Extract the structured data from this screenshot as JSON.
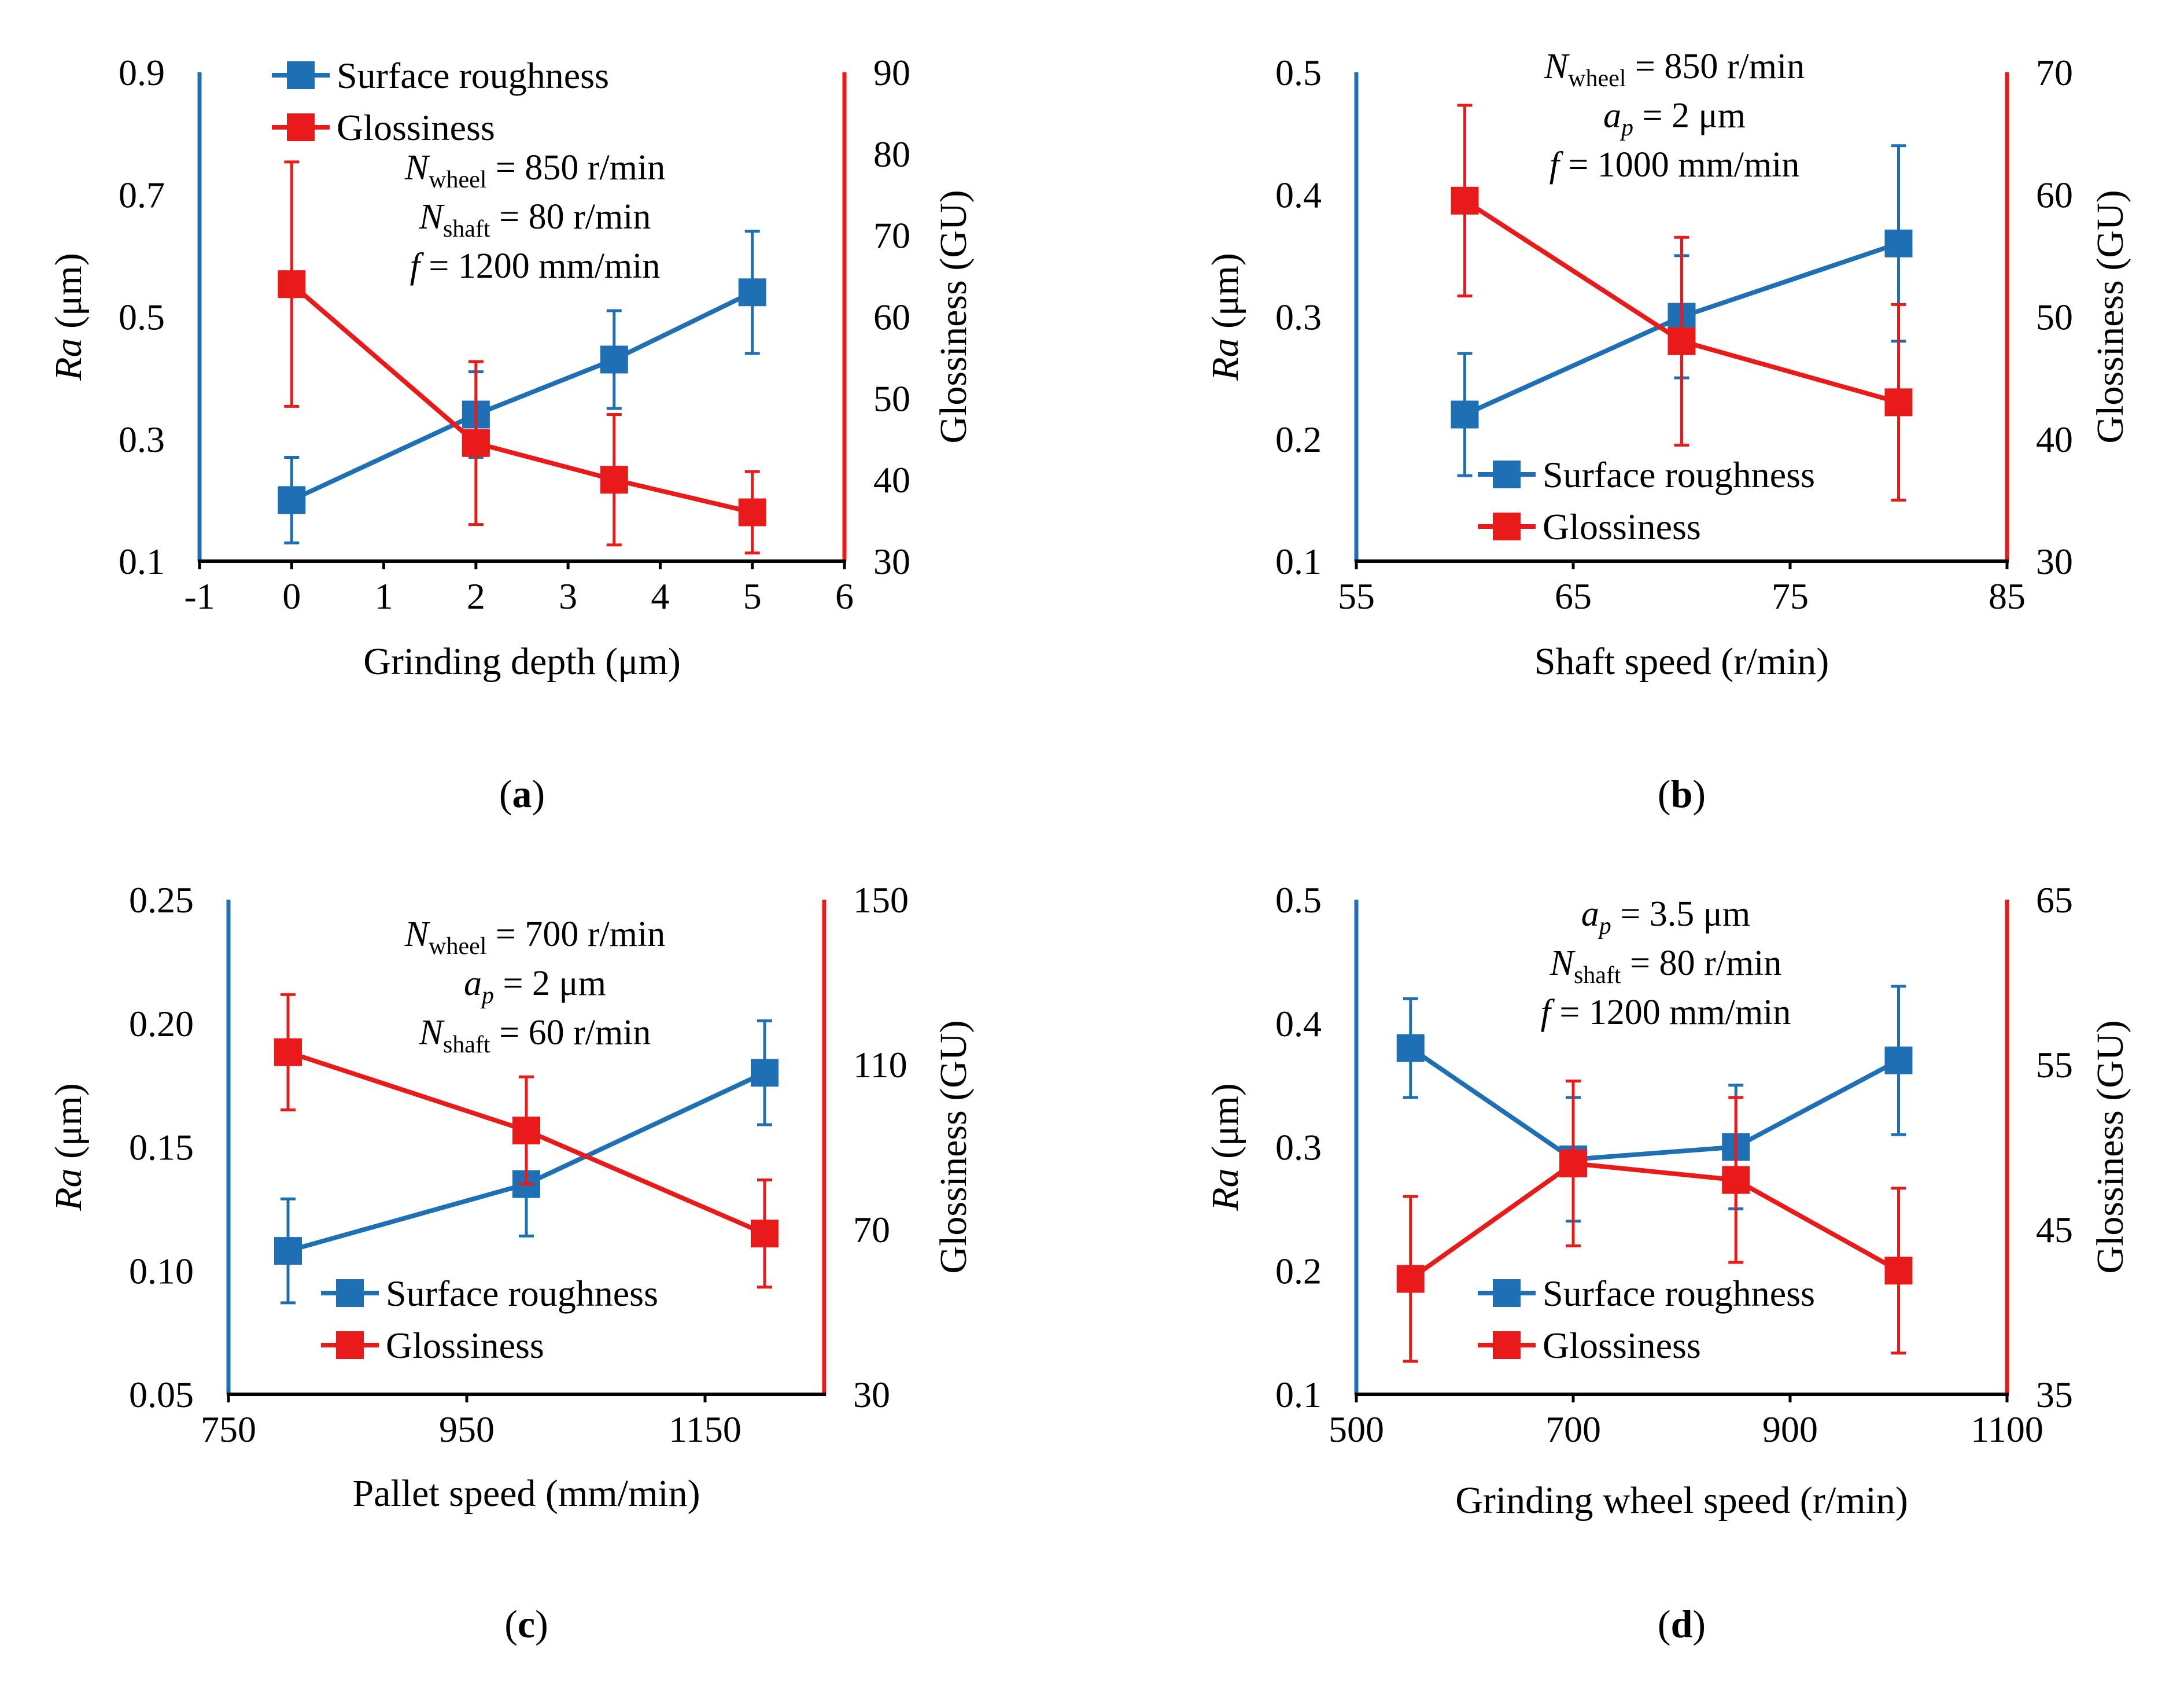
{
  "colors": {
    "roughness": "#1f6fb5",
    "gloss": "#e91a1a"
  },
  "legend": {
    "roughness": "Surface roughness",
    "gloss": "Glossiness"
  },
  "axis_titles": {
    "ra": "Ra",
    "ra_unit": " (μm)",
    "gloss": "Glossiness (GU)"
  },
  "chart_data": [
    {
      "type": "line",
      "label": "a",
      "xlabel": "Grinding depth (μm)",
      "xlim": [
        -1,
        6
      ],
      "xticks": [
        -1,
        0,
        1,
        2,
        3,
        4,
        5,
        6
      ],
      "xtick_labels": [
        "-1",
        "0",
        "1",
        "2",
        "3",
        "4",
        "5",
        "6"
      ],
      "ylim_left": [
        0.1,
        0.9
      ],
      "yticks_left": [
        "0.1",
        "0.3",
        "0.5",
        "0.7",
        "0.9"
      ],
      "ylim_right": [
        30,
        90
      ],
      "yticks_right": [
        "30",
        "40",
        "50",
        "60",
        "70",
        "80",
        "90"
      ],
      "legend_position": "top",
      "conditions": [
        {
          "sym": "N",
          "sub": "wheel",
          "rest": " = 850 r/min"
        },
        {
          "sym": "N",
          "sub": "shaft",
          "rest": " = 80 r/min"
        },
        {
          "sym": "f",
          "sub": "",
          "rest": " = 1200 mm/min"
        }
      ],
      "series": [
        {
          "name": "Surface roughness",
          "axis": "left",
          "x": [
            0,
            2,
            3.5,
            5
          ],
          "y": [
            0.2,
            0.34,
            0.43,
            0.54
          ],
          "err": [
            0.07,
            0.07,
            0.08,
            0.1
          ]
        },
        {
          "name": "Glossiness",
          "axis": "right",
          "x": [
            0,
            2,
            3.5,
            5
          ],
          "y": [
            64,
            44.5,
            40,
            36
          ],
          "err": [
            15,
            10,
            8,
            5
          ]
        }
      ]
    },
    {
      "type": "line",
      "label": "b",
      "xlabel": "Shaft speed (r/min)",
      "xlim": [
        55,
        85
      ],
      "xticks": [
        55,
        65,
        75,
        85
      ],
      "xtick_labels": [
        "55",
        "65",
        "75",
        "85"
      ],
      "ylim_left": [
        0.1,
        0.5
      ],
      "yticks_left": [
        "0.1",
        "0.2",
        "0.3",
        "0.4",
        "0.5"
      ],
      "ylim_right": [
        30,
        70
      ],
      "yticks_right": [
        "30",
        "40",
        "50",
        "60",
        "70"
      ],
      "legend_position": "bottom-left",
      "conditions": [
        {
          "sym": "N",
          "sub": "wheel",
          "rest": " = 850 r/min"
        },
        {
          "sym": "a",
          "sub": "p",
          "rest": " = 2 μm"
        },
        {
          "sym": "f",
          "sub": "",
          "rest": " = 1000 mm/min"
        }
      ],
      "series": [
        {
          "name": "Surface roughness",
          "axis": "left",
          "x": [
            60,
            70,
            80
          ],
          "y": [
            0.22,
            0.3,
            0.36
          ],
          "err": [
            0.05,
            0.05,
            0.08
          ]
        },
        {
          "name": "Glossiness",
          "axis": "right",
          "x": [
            60,
            70,
            80
          ],
          "y": [
            59.5,
            48,
            43
          ],
          "err": [
            7.8,
            8.5,
            8
          ]
        }
      ]
    },
    {
      "type": "line",
      "label": "c",
      "xlabel": "Pallet speed (mm/min)",
      "xlim": [
        750,
        1250
      ],
      "xticks": [
        750,
        950,
        1150
      ],
      "xtick_labels": [
        "750",
        "950",
        "1150"
      ],
      "ylim_left": [
        0.05,
        0.25
      ],
      "yticks_left": [
        "0.05",
        "0.10",
        "0.15",
        "0.20",
        "0.25"
      ],
      "ylim_right": [
        30,
        150
      ],
      "yticks_right": [
        "30",
        "70",
        "110",
        "150"
      ],
      "legend_position": "bottom-left",
      "conditions": [
        {
          "sym": "N",
          "sub": "wheel",
          "rest": " = 700 r/min"
        },
        {
          "sym": "a",
          "sub": "p",
          "rest": " = 2 μm"
        },
        {
          "sym": "N",
          "sub": "shaft",
          "rest": " = 60 r/min"
        }
      ],
      "series": [
        {
          "name": "Surface roughness",
          "axis": "left",
          "x": [
            800,
            1000,
            1200
          ],
          "y": [
            0.108,
            0.135,
            0.18
          ],
          "err": [
            0.021,
            0.021,
            0.021
          ]
        },
        {
          "name": "Glossiness",
          "axis": "right",
          "x": [
            800,
            1000,
            1200
          ],
          "y": [
            113,
            94,
            69
          ],
          "err": [
            14,
            13,
            13
          ]
        }
      ]
    },
    {
      "type": "line",
      "label": "d",
      "xlabel": "Grinding wheel speed (r/min)",
      "xlim": [
        500,
        1100
      ],
      "xticks": [
        500,
        700,
        900,
        1100
      ],
      "xtick_labels": [
        "500",
        "700",
        "900",
        "1100"
      ],
      "ylim_left": [
        0.1,
        0.5
      ],
      "yticks_left": [
        "0.1",
        "0.2",
        "0.3",
        "0.4",
        "0.5"
      ],
      "ylim_right": [
        35,
        65
      ],
      "yticks_right": [
        "35",
        "45",
        "55",
        "65"
      ],
      "legend_position": "bottom-left",
      "conditions": [
        {
          "sym": "a",
          "sub": "p",
          "rest": " = 3.5 μm"
        },
        {
          "sym": "N",
          "sub": "shaft",
          "rest": " = 80 r/min"
        },
        {
          "sym": "f",
          "sub": "",
          "rest": " = 1200 mm/min"
        }
      ],
      "series": [
        {
          "name": "Surface roughness",
          "axis": "left",
          "x": [
            550,
            700,
            850,
            1000
          ],
          "y": [
            0.38,
            0.29,
            0.3,
            0.37
          ],
          "err": [
            0.04,
            0.05,
            0.05,
            0.06
          ]
        },
        {
          "name": "Glossiness",
          "axis": "right",
          "x": [
            550,
            700,
            850,
            1000
          ],
          "y": [
            42,
            49,
            48,
            42.5
          ],
          "err": [
            5,
            5,
            5,
            5
          ]
        }
      ]
    }
  ]
}
